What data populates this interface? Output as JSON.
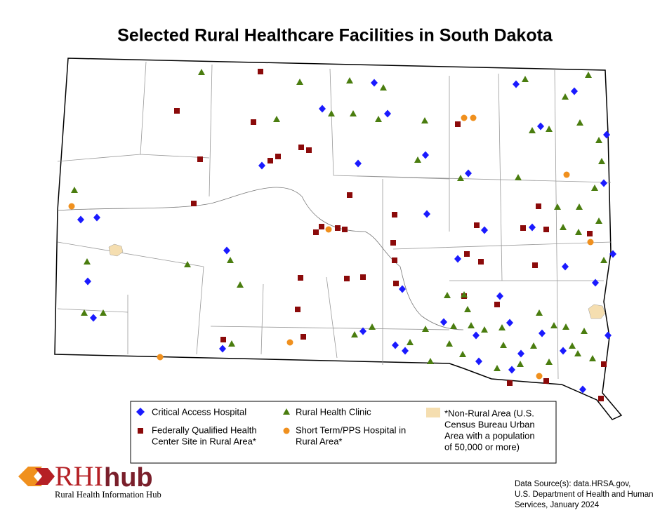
{
  "title": "Selected Rural Healthcare Facilities in South Dakota",
  "legend": {
    "critical_access": "Critical Access Hospital",
    "rural_clinic": "Rural Health Clinic",
    "non_rural": [
      "*Non-Rural Area (U.S.",
      "Census Bureau Urban",
      "Area with a population",
      "of 50,000 or more)"
    ],
    "fqhc": [
      "Federally Qualified Health",
      "Center Site in Rural Area*"
    ],
    "short_term": [
      "Short Term/PPS Hospital in",
      "Rural Area*"
    ]
  },
  "logo": {
    "rhi": "RHI",
    "hub": "hub",
    "subtitle": "Rural Health Information Hub"
  },
  "source": [
    "Data Source(s): data.HRSA.gov,",
    "U.S. Department of Health and Human",
    "Services, January 2024"
  ]
}
